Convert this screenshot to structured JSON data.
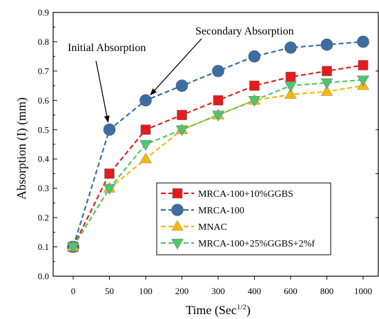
{
  "chart_data": {
    "type": "line",
    "categories": [
      "0",
      "50",
      "100",
      "200",
      "300",
      "400",
      "600",
      "800",
      "1000"
    ],
    "xlabel": "Time (Sec",
    "xlabel_sup": "1/2",
    "xlabel_end": ")",
    "ylabel": "Absorption (I) (mm)",
    "ylim": [
      0,
      0.9
    ],
    "yticks": [
      "0.0",
      "0.1",
      "0.2",
      "0.3",
      "0.4",
      "0.5",
      "0.6",
      "0.7",
      "0.8",
      "0.9"
    ],
    "grid": false,
    "legend_position": "bottom-right",
    "series": [
      {
        "name": "MRCA-100+10%GGBS",
        "color": "#e41a1c",
        "marker": "square",
        "values": [
          0.1,
          0.35,
          0.5,
          0.55,
          0.6,
          0.65,
          0.68,
          0.7,
          0.72
        ]
      },
      {
        "name": "MRCA-100",
        "color": "#3a6ea5",
        "marker": "circle",
        "values": [
          0.1,
          0.5,
          0.6,
          0.65,
          0.7,
          0.75,
          0.78,
          0.79,
          0.8
        ]
      },
      {
        "name": "MNAC",
        "color": "#f5b800",
        "marker": "triangle-up",
        "values": [
          0.1,
          0.3,
          0.4,
          0.5,
          0.55,
          0.6,
          0.62,
          0.63,
          0.65
        ]
      },
      {
        "name": "MRCA-100+25%GGBS+2%f",
        "color": "#4cc86a",
        "marker": "triangle-down",
        "values": [
          0.1,
          0.3,
          0.45,
          0.5,
          0.55,
          0.6,
          0.65,
          0.66,
          0.67
        ]
      }
    ],
    "annotations": [
      {
        "text": "Initial Absorption",
        "points_to_series": "MRCA-100",
        "points_to_index": 1
      },
      {
        "text": "Secondary Absorption",
        "points_to_series": "MRCA-100",
        "points_to_index": 2
      }
    ]
  }
}
